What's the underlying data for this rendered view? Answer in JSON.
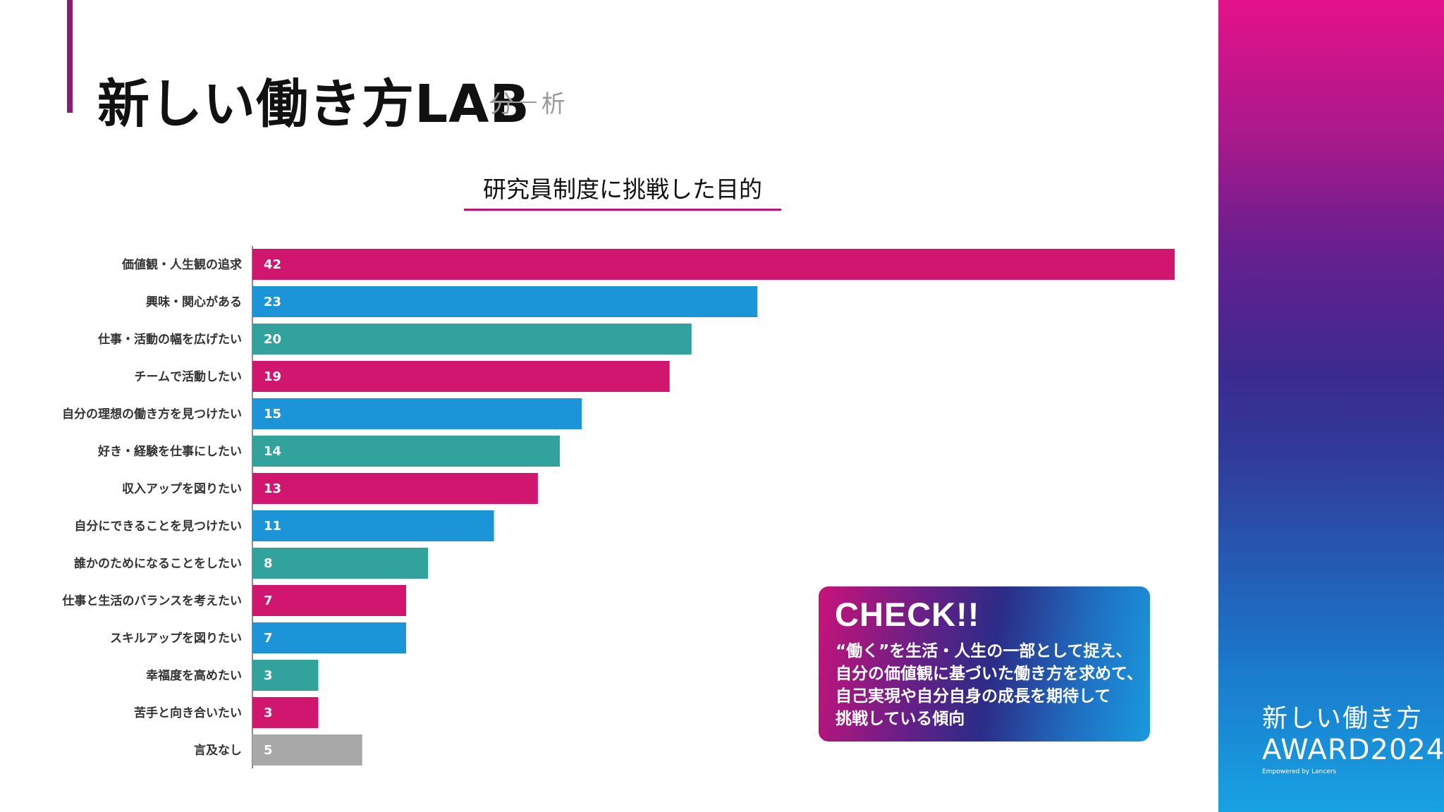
{
  "header": {
    "title": "新しい働き方LAB",
    "subtitle": "分 析"
  },
  "chart_data": {
    "type": "bar",
    "orientation": "horizontal",
    "title": "研究員制度に挑戦した目的",
    "categories": [
      "価値観・人生観の追求",
      "興味・関心がある",
      "仕事・活動の幅を広げたい",
      "チームで活動したい",
      "自分の理想の働き方を見つけたい",
      "好き・経験を仕事にしたい",
      "収入アップを図りたい",
      "自分にできることを見つけたい",
      "誰かのためになることをしたい",
      "仕事と生活のバランスを考えたい",
      "スキルアップを図りたい",
      "幸福度を高めたい",
      "苦手と向き合いたい",
      "言及なし"
    ],
    "values": [
      42,
      23,
      20,
      19,
      15,
      14,
      13,
      11,
      8,
      7,
      7,
      3,
      3,
      5
    ],
    "bar_colors": [
      "#d1166f",
      "#1b95d8",
      "#32a29c",
      "#d1166f",
      "#1b95d8",
      "#32a29c",
      "#d1166f",
      "#1b95d8",
      "#32a29c",
      "#d1166f",
      "#1b95d8",
      "#32a29c",
      "#d1166f",
      "#a8a8a8"
    ],
    "xlim": [
      0,
      42
    ],
    "grid": false,
    "legend": "none",
    "data_labels": "inside-left"
  },
  "check_box": {
    "heading": "CHECK!!",
    "lines": [
      "“働く”を生活・人生の一部として捉え、",
      "自分の価値観に基づいた働き方を求めて、",
      "自己実現や自分自身の成長を期待して",
      "挑戦している傾向"
    ]
  },
  "side_panel": {
    "logo_line1": "新しい働き方",
    "logo_line2": "AWARD2024",
    "logo_line3": "Empowered by Lancers"
  },
  "colors": {
    "magenta": "#d1166f",
    "blue": "#1b95d8",
    "teal": "#32a29c",
    "gray": "#a8a8a8",
    "title_accent": "#8a1d72",
    "underline": "#c5126f"
  }
}
